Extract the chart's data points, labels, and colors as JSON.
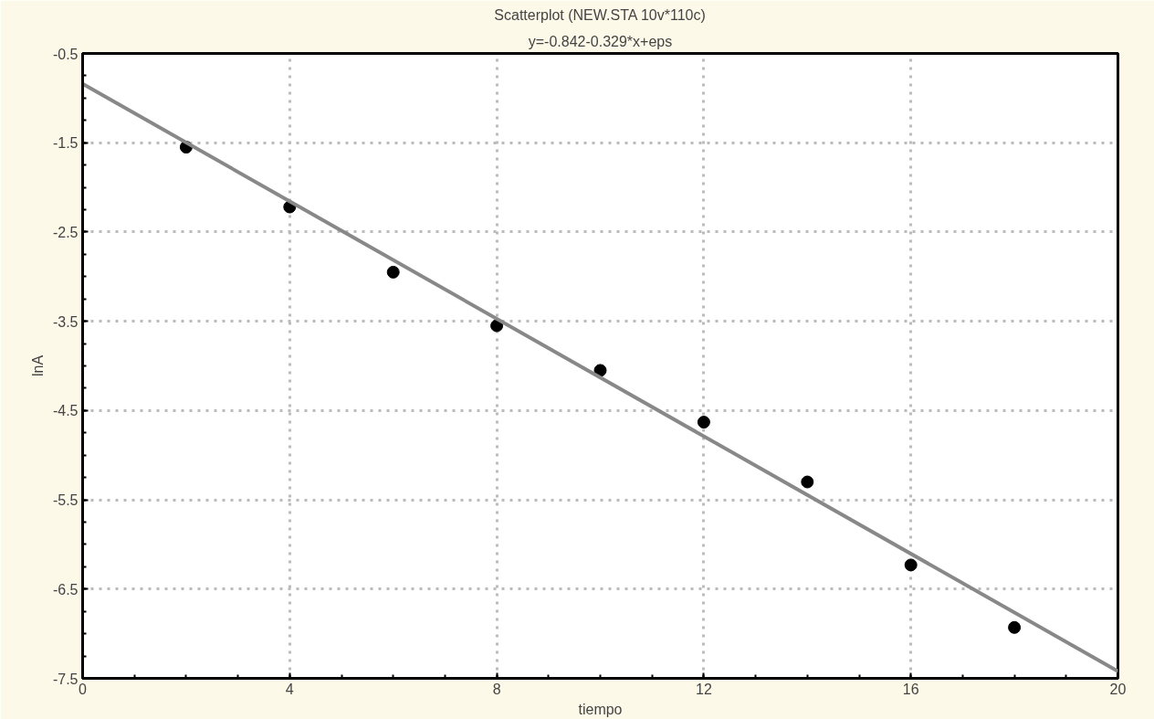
{
  "chart_data": {
    "type": "scatter",
    "title": "Scatterplot (NEW.STA 10v*110c)",
    "subtitle": "y=-0.842-0.329*x+eps",
    "xlabel": "tiempo",
    "ylabel": "lnA",
    "series": [
      {
        "marker": "circle",
        "color": "#000000",
        "x": [
          2,
          4,
          6,
          8,
          10,
          12,
          14,
          16,
          18
        ],
        "values": [
          -1.55,
          -2.22,
          -2.95,
          -3.55,
          -4.05,
          -4.63,
          -5.3,
          -6.23,
          -6.93
        ]
      },
      {
        "type": "line",
        "color": "#888888",
        "x": [
          0,
          20
        ],
        "values": [
          -0.84,
          -7.42
        ]
      }
    ],
    "xlim": [
      0,
      20
    ],
    "ylim": [
      -7.5,
      -0.5
    ],
    "xticks": [
      0,
      4,
      8,
      12,
      16,
      20
    ],
    "yticks": [
      -7.5,
      -6.5,
      -5.5,
      -4.5,
      -3.5,
      -2.5,
      -1.5,
      -0.5
    ],
    "grid": true,
    "line_style": "solid"
  }
}
